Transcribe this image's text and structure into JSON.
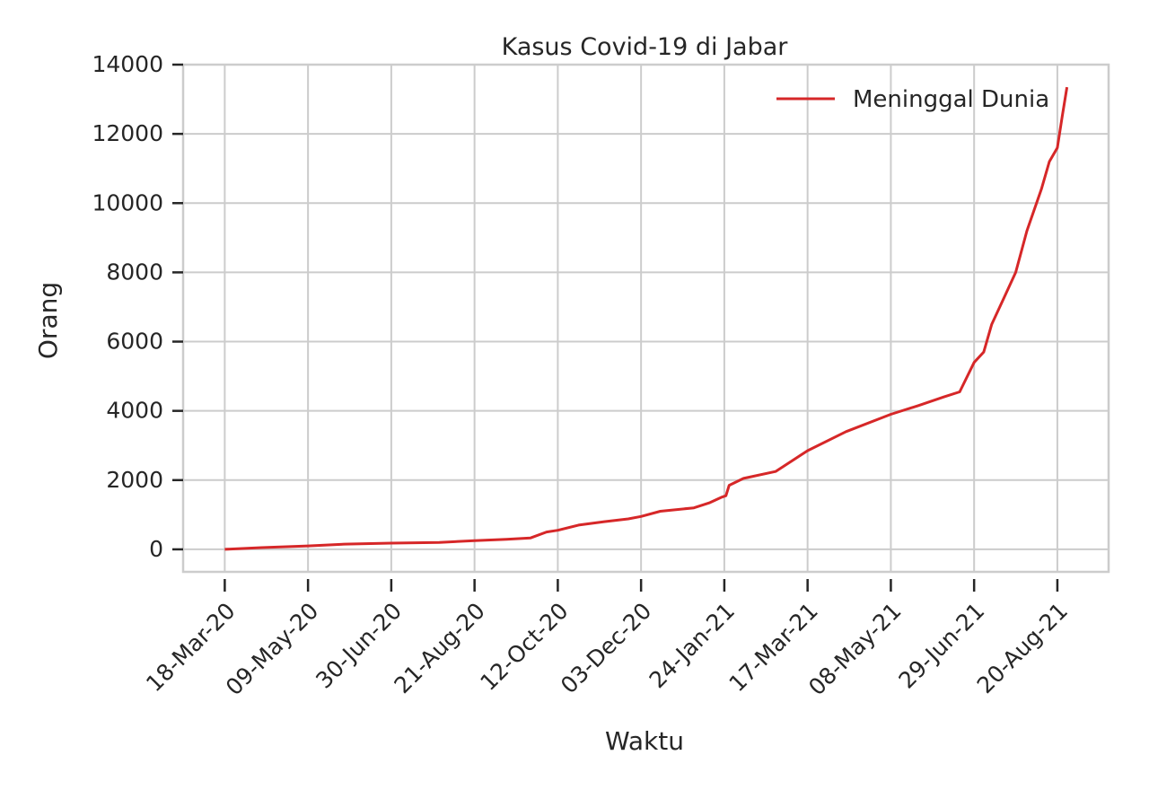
{
  "chart_data": {
    "type": "line",
    "title": "Kasus Covid-19 di Jabar",
    "xlabel": "Waktu",
    "ylabel": "Orang",
    "x_ticks": [
      "18-Mar-20",
      "09-May-20",
      "30-Jun-20",
      "21-Aug-20",
      "12-Oct-20",
      "03-Dec-20",
      "24-Jan-21",
      "17-Mar-21",
      "08-May-21",
      "29-Jun-21",
      "20-Aug-21"
    ],
    "y_ticks": [
      0,
      2000,
      4000,
      6000,
      8000,
      10000,
      12000,
      14000
    ],
    "y_tick_labels": [
      "0",
      "2000",
      "4000",
      "6000",
      "8000",
      "10000",
      "12000",
      "14000"
    ],
    "ylim": [
      -650,
      14000
    ],
    "xlim": [
      "2020-02-21",
      "2021-09-21"
    ],
    "grid": true,
    "legend_position": "top-right",
    "series": [
      {
        "name": "Meninggal Dunia",
        "color": "#d62728",
        "points": [
          [
            "2020-03-18",
            0
          ],
          [
            "2020-04-10",
            50
          ],
          [
            "2020-05-09",
            100
          ],
          [
            "2020-06-01",
            150
          ],
          [
            "2020-06-30",
            180
          ],
          [
            "2020-07-30",
            200
          ],
          [
            "2020-08-21",
            250
          ],
          [
            "2020-09-10",
            290
          ],
          [
            "2020-09-25",
            330
          ],
          [
            "2020-10-05",
            500
          ],
          [
            "2020-10-12",
            550
          ],
          [
            "2020-10-25",
            700
          ],
          [
            "2020-11-10",
            800
          ],
          [
            "2020-11-25",
            880
          ],
          [
            "2020-12-03",
            950
          ],
          [
            "2020-12-15",
            1100
          ],
          [
            "2021-01-05",
            1200
          ],
          [
            "2021-01-15",
            1350
          ],
          [
            "2021-01-22",
            1500
          ],
          [
            "2021-01-25",
            1550
          ],
          [
            "2021-01-27",
            1850
          ],
          [
            "2021-02-05",
            2050
          ],
          [
            "2021-02-25",
            2250
          ],
          [
            "2021-03-17",
            2850
          ],
          [
            "2021-04-10",
            3400
          ],
          [
            "2021-05-08",
            3900
          ],
          [
            "2021-05-25",
            4150
          ],
          [
            "2021-06-10",
            4400
          ],
          [
            "2021-06-20",
            4550
          ],
          [
            "2021-06-29",
            5400
          ],
          [
            "2021-07-05",
            5700
          ],
          [
            "2021-07-10",
            6500
          ],
          [
            "2021-07-18",
            7300
          ],
          [
            "2021-07-25",
            8000
          ],
          [
            "2021-08-01",
            9200
          ],
          [
            "2021-08-10",
            10400
          ],
          [
            "2021-08-15",
            11200
          ],
          [
            "2021-08-20",
            11600
          ],
          [
            "2021-08-23",
            12500
          ],
          [
            "2021-08-26",
            13350
          ]
        ]
      }
    ]
  }
}
